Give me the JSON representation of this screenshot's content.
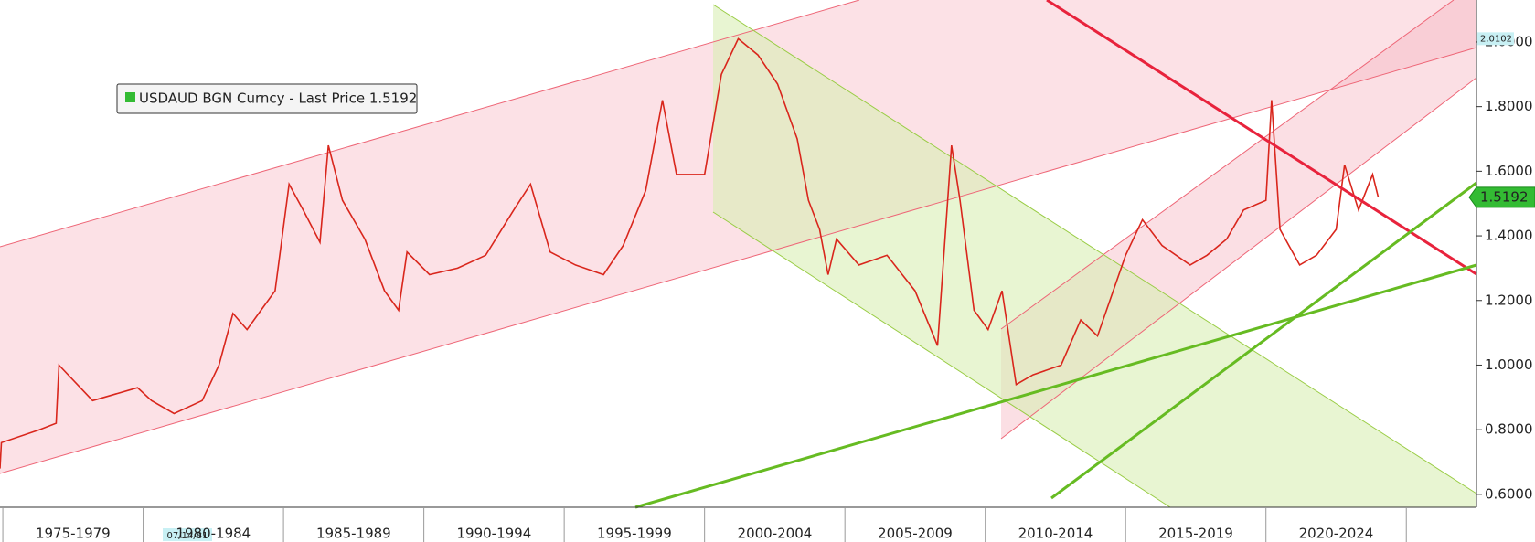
{
  "chart_data": {
    "type": "line",
    "legend": "USDAUD BGN Curncy - Last Price 1.5192",
    "legend_color": "#33bb33",
    "crosshair_date": "07/14/81",
    "high_tag": {
      "value": 2.0102,
      "label": "2.0102"
    },
    "last_tag": {
      "value": 1.5192,
      "label": "1.5192"
    },
    "xlim": [
      1974.9,
      2027.5
    ],
    "ylim": [
      0.56,
      2.13
    ],
    "xticks": [
      {
        "value": 1975,
        "label": "1975-1979"
      },
      {
        "value": 1980,
        "label": "1980-1984"
      },
      {
        "value": 1985,
        "label": "1985-1989"
      },
      {
        "value": 1990,
        "label": "1990-1994"
      },
      {
        "value": 1995,
        "label": "1995-1999"
      },
      {
        "value": 2000,
        "label": "2000-2004"
      },
      {
        "value": 2005,
        "label": "2005-2009"
      },
      {
        "value": 2010,
        "label": "2010-2014"
      },
      {
        "value": 2015,
        "label": "2015-2019"
      },
      {
        "value": 2020,
        "label": "2020-2024"
      },
      {
        "value": 2025,
        "label": ""
      }
    ],
    "yticks": [
      {
        "value": 0.6,
        "label": "0.6000"
      },
      {
        "value": 0.8,
        "label": "0.8000"
      },
      {
        "value": 1.0,
        "label": "1.0000"
      },
      {
        "value": 1.2,
        "label": "1.2000"
      },
      {
        "value": 1.4,
        "label": "1.4000"
      },
      {
        "value": 1.6,
        "label": "1.6000"
      },
      {
        "value": 1.8,
        "label": "1.8000"
      },
      {
        "value": 2.0,
        "label": "2.0000"
      }
    ],
    "series": [
      {
        "name": "USDAUD",
        "color": "#d9261c",
        "x": [
          1974.9,
          1974.95,
          1976.3,
          1976.9,
          1977.0,
          1978.2,
          1979.8,
          1980.3,
          1981.1,
          1982.1,
          1982.7,
          1983.2,
          1983.7,
          1984.2,
          1984.7,
          1985.2,
          1985.7,
          1986.3,
          1986.6,
          1987.1,
          1987.9,
          1988.6,
          1989.1,
          1989.4,
          1990.2,
          1991.2,
          1992.2,
          1993.2,
          1993.8,
          1994.5,
          1995.4,
          1996.4,
          1997.1,
          1997.9,
          1998.5,
          1999.0,
          2000.0,
          2000.6,
          2001.2,
          2001.9,
          2002.6,
          2003.3,
          2003.7,
          2004.1,
          2004.4,
          2004.7,
          2005.5,
          2006.5,
          2007.5,
          2008.3,
          2008.8,
          2009.1,
          2009.6,
          2010.1,
          2010.6,
          2011.1,
          2011.7,
          2012.7,
          2013.4,
          2014.0,
          2015.0,
          2015.6,
          2016.3,
          2017.3,
          2017.9,
          2018.6,
          2019.2,
          2020.0,
          2020.2,
          2020.5,
          2021.2,
          2021.8,
          2022.5,
          2022.8,
          2023.3,
          2023.8,
          2024.0
        ],
        "values": [
          0.68,
          0.76,
          0.8,
          0.82,
          1.0,
          0.89,
          0.93,
          0.89,
          0.85,
          0.89,
          1.0,
          1.16,
          1.11,
          1.17,
          1.23,
          1.56,
          1.48,
          1.38,
          1.68,
          1.51,
          1.39,
          1.23,
          1.17,
          1.35,
          1.28,
          1.3,
          1.34,
          1.48,
          1.56,
          1.35,
          1.31,
          1.28,
          1.37,
          1.54,
          1.82,
          1.59,
          1.59,
          1.9,
          2.01,
          1.96,
          1.87,
          1.7,
          1.51,
          1.42,
          1.28,
          1.39,
          1.31,
          1.34,
          1.23,
          1.06,
          1.68,
          1.51,
          1.17,
          1.11,
          1.23,
          0.94,
          0.97,
          1.0,
          1.14,
          1.09,
          1.34,
          1.45,
          1.37,
          1.31,
          1.34,
          1.39,
          1.48,
          1.51,
          1.82,
          1.42,
          1.31,
          1.34,
          1.42,
          1.62,
          1.48,
          1.59,
          1.52
        ]
      }
    ]
  }
}
